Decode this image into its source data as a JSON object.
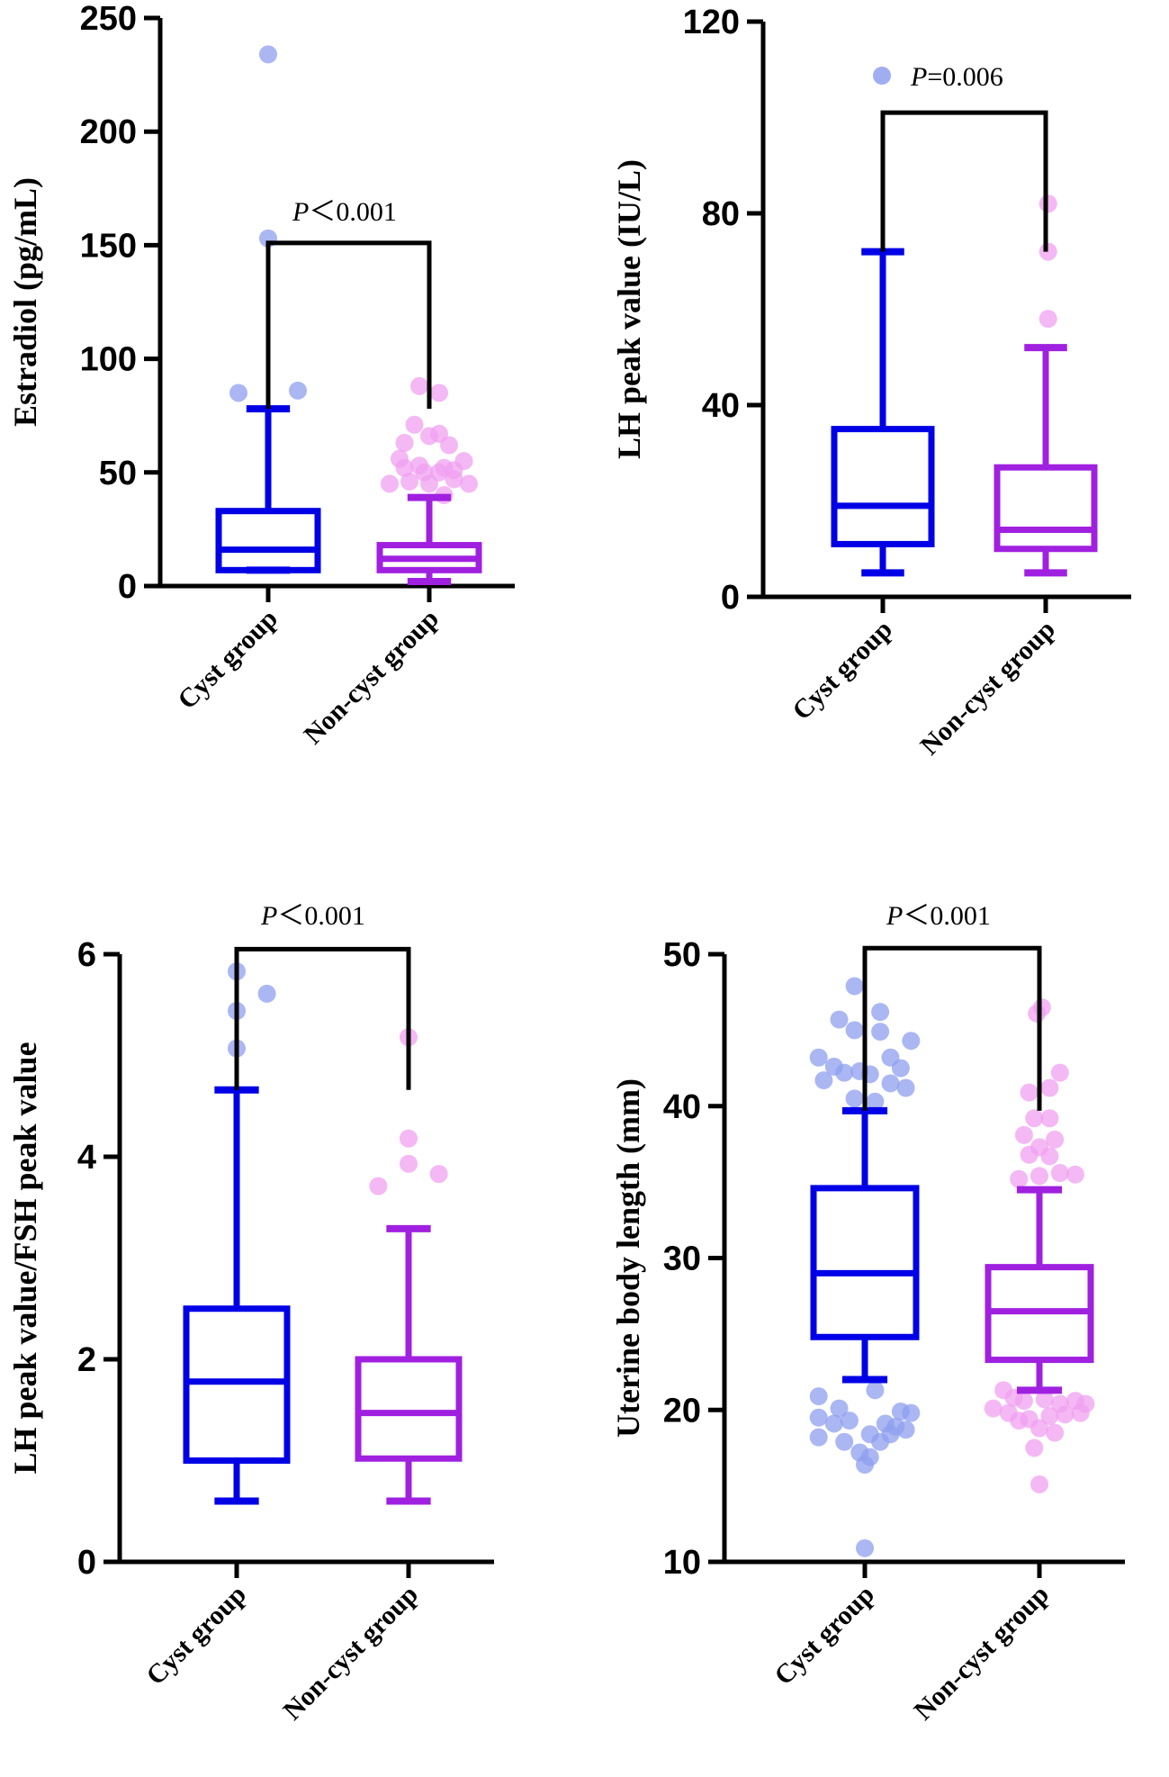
{
  "chart_data": [
    {
      "type": "box",
      "ylabel": "Estradiol (pg/mL)",
      "ylim": [
        0,
        250
      ],
      "yticks": [
        0,
        50,
        100,
        150,
        200,
        250
      ],
      "categories": [
        "Cyst group",
        "Non-cyst group"
      ],
      "p_prefix": "P",
      "p_text": "＜0.001",
      "bracket_y": 151,
      "legend_dot": false,
      "series": [
        {
          "name": "Cyst group",
          "color": "#0000e6",
          "point_color": "#8f9fef",
          "min": 7,
          "q1": 7,
          "median": 16,
          "q3": 33,
          "max": 78,
          "outliers": [
            [
              0,
              234
            ],
            [
              0,
              153
            ],
            [
              -0.6,
              85
            ],
            [
              0.6,
              86
            ]
          ]
        },
        {
          "name": "Non-cyst group",
          "color": "#a020e0",
          "point_color": "#f0a0f0",
          "min": 2,
          "q1": 7,
          "median": 12,
          "q3": 18,
          "max": 39,
          "outliers": [
            [
              -0.2,
              88
            ],
            [
              0.2,
              85
            ],
            [
              -0.3,
              71
            ],
            [
              0.2,
              67
            ],
            [
              -0.5,
              63
            ],
            [
              0,
              66
            ],
            [
              0.4,
              62
            ],
            [
              -0.6,
              56
            ],
            [
              -0.2,
              53
            ],
            [
              0.3,
              52
            ],
            [
              -0.5,
              52
            ],
            [
              0.5,
              51
            ],
            [
              -0.1,
              50
            ],
            [
              0.2,
              50
            ],
            [
              0.7,
              55
            ],
            [
              -0.4,
              46
            ],
            [
              0,
              45
            ],
            [
              0.5,
              47
            ],
            [
              0.8,
              45
            ],
            [
              -0.8,
              45
            ],
            [
              0.3,
              40
            ]
          ]
        }
      ]
    },
    {
      "type": "box",
      "ylabel": "LH peak value (IU/L)",
      "ylim": [
        0,
        120
      ],
      "yticks": [
        0,
        40,
        80,
        120
      ],
      "categories": [
        "Cyst group",
        "Non-cyst group"
      ],
      "p_prefix": "P",
      "p_text": "=0.006",
      "bracket_y": 101,
      "legend_dot": true,
      "series": [
        {
          "name": "Cyst group",
          "color": "#0000e6",
          "point_color": "#8f9fef",
          "min": 5,
          "q1": 11,
          "median": 19,
          "q3": 35,
          "max": 72,
          "outliers": []
        },
        {
          "name": "Non-cyst group",
          "color": "#a020e0",
          "point_color": "#f0a0f0",
          "min": 5,
          "q1": 10,
          "median": 14,
          "q3": 27,
          "max": 52,
          "outliers": [
            [
              0.05,
              82
            ],
            [
              0.05,
              72
            ],
            [
              0.05,
              58
            ]
          ]
        }
      ]
    },
    {
      "type": "box",
      "ylabel": "LH peak value/FSH peak value",
      "ylim": [
        0,
        6
      ],
      "yticks": [
        0,
        2,
        4,
        6
      ],
      "categories": [
        "Cyst group",
        "Non-cyst group"
      ],
      "p_prefix": "P",
      "p_text": "＜0.001",
      "bracket_y": 6.05,
      "legend_dot": false,
      "series": [
        {
          "name": "Cyst group",
          "color": "#0000e6",
          "point_color": "#8f9fef",
          "min": 0.6,
          "q1": 1.0,
          "median": 1.78,
          "q3": 2.5,
          "max": 4.66,
          "outliers": [
            [
              0,
              5.83
            ],
            [
              0,
              5.44
            ],
            [
              0.6,
              5.61
            ],
            [
              0,
              5.07
            ]
          ]
        },
        {
          "name": "Non-cyst group",
          "color": "#a020e0",
          "point_color": "#f0a0f0",
          "min": 0.6,
          "q1": 1.02,
          "median": 1.47,
          "q3": 2.0,
          "max": 3.29,
          "outliers": [
            [
              0,
              5.18
            ],
            [
              0,
              4.18
            ],
            [
              0,
              3.93
            ],
            [
              -0.6,
              3.71
            ],
            [
              0.6,
              3.83
            ]
          ]
        }
      ]
    },
    {
      "type": "box",
      "ylabel": "Uterine body length (mm)",
      "ylim": [
        10,
        50
      ],
      "yticks": [
        10,
        20,
        30,
        40,
        50
      ],
      "categories": [
        "Cyst group",
        "Non-cyst group"
      ],
      "p_prefix": "P",
      "p_text": "＜0.001",
      "bracket_y": 50.4,
      "legend_dot": false,
      "series": [
        {
          "name": "Cyst group",
          "color": "#0000e6",
          "point_color": "#8f9fef",
          "min": 22,
          "q1": 24.8,
          "median": 29,
          "q3": 34.6,
          "max": 39.7,
          "outliers": [
            [
              -0.2,
              47.9
            ],
            [
              0.3,
              46.2
            ],
            [
              -0.5,
              45.7
            ],
            [
              -0.2,
              45
            ],
            [
              0.3,
              44.9
            ],
            [
              0.9,
              44.3
            ],
            [
              -0.9,
              43.2
            ],
            [
              -0.6,
              42.6
            ],
            [
              0.5,
              43.2
            ],
            [
              0.7,
              42.5
            ],
            [
              -0.8,
              41.7
            ],
            [
              -0.4,
              42.2
            ],
            [
              -0.1,
              42.3
            ],
            [
              0.1,
              42.1
            ],
            [
              0.5,
              41.5
            ],
            [
              0.8,
              41.2
            ],
            [
              -0.2,
              40.5
            ],
            [
              0.2,
              40.3
            ],
            [
              -0.9,
              20.9
            ],
            [
              -0.5,
              20.1
            ],
            [
              0.2,
              21.3
            ],
            [
              0.7,
              19.9
            ],
            [
              0.9,
              19.8
            ],
            [
              -0.9,
              19.5
            ],
            [
              -0.6,
              19.1
            ],
            [
              -0.3,
              19.3
            ],
            [
              0.4,
              19.1
            ],
            [
              0.6,
              18.9
            ],
            [
              -0.9,
              18.2
            ],
            [
              -0.4,
              17.9
            ],
            [
              0.1,
              18.4
            ],
            [
              0.5,
              18.4
            ],
            [
              0.8,
              18.7
            ],
            [
              0.3,
              17.9
            ],
            [
              -0.1,
              17.2
            ],
            [
              0.1,
              16.9
            ],
            [
              0.0,
              16.4
            ],
            [
              0.0,
              10.9
            ]
          ]
        },
        {
          "name": "Non-cyst group",
          "color": "#a020e0",
          "point_color": "#f0a0f0",
          "min": 21.3,
          "q1": 23.3,
          "median": 26.5,
          "q3": 29.4,
          "max": 34.5,
          "outliers": [
            [
              0.05,
              46.5
            ],
            [
              -0.05,
              46.1
            ],
            [
              0.4,
              42.2
            ],
            [
              -0.2,
              40.9
            ],
            [
              0.2,
              41.2
            ],
            [
              -0.1,
              39.2
            ],
            [
              0.2,
              39.2
            ],
            [
              -0.3,
              38.1
            ],
            [
              0.0,
              37.3
            ],
            [
              0.3,
              37.8
            ],
            [
              -0.2,
              36.8
            ],
            [
              0.2,
              36.7
            ],
            [
              -0.4,
              35.2
            ],
            [
              0.0,
              35.4
            ],
            [
              0.4,
              35.6
            ],
            [
              0.7,
              35.5
            ],
            [
              -0.7,
              21.3
            ],
            [
              -0.5,
              20.8
            ],
            [
              -0.3,
              20.6
            ],
            [
              0.1,
              20.7
            ],
            [
              0.4,
              20.4
            ],
            [
              0.7,
              20.6
            ],
            [
              0.9,
              20.4
            ],
            [
              -0.9,
              20.1
            ],
            [
              -0.6,
              19.8
            ],
            [
              -0.2,
              19.4
            ],
            [
              0.2,
              19.6
            ],
            [
              0.5,
              19.7
            ],
            [
              0.8,
              19.8
            ],
            [
              -0.4,
              19.3
            ],
            [
              0.0,
              18.8
            ],
            [
              0.3,
              18.5
            ],
            [
              -0.1,
              17.5
            ],
            [
              0.0,
              15.1
            ]
          ]
        }
      ]
    }
  ]
}
